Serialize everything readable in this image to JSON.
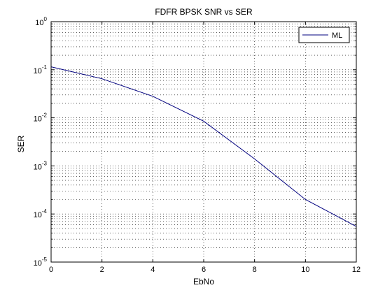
{
  "chart_data": {
    "type": "line",
    "title": "FDFR BPSK SNR vs SER",
    "xlabel": "EbNo",
    "ylabel": "SER",
    "xlim": [
      0,
      12
    ],
    "ylim": [
      1e-05,
      1
    ],
    "yscale": "log",
    "grid": true,
    "legend": "top-right",
    "x_ticks": [
      0,
      2,
      4,
      6,
      8,
      10,
      12
    ],
    "x_tick_labels": [
      "0",
      "2",
      "4",
      "6",
      "8",
      "10",
      "12"
    ],
    "y_ticks": [
      {
        "value": 1,
        "base": "10",
        "exp": "0"
      },
      {
        "value": 0.1,
        "base": "10",
        "exp": "-1"
      },
      {
        "value": 0.01,
        "base": "10",
        "exp": "-2"
      },
      {
        "value": 0.001,
        "base": "10",
        "exp": "-3"
      },
      {
        "value": 0.0001,
        "base": "10",
        "exp": "-4"
      },
      {
        "value": 1e-05,
        "base": "10",
        "exp": "-5"
      }
    ],
    "series": [
      {
        "name": "ML",
        "color": "#00007f",
        "x": [
          0,
          2,
          4,
          6,
          8,
          10,
          12
        ],
        "y": [
          0.115,
          0.065,
          0.028,
          0.0085,
          0.0014,
          0.0002,
          5.5e-05
        ]
      }
    ]
  }
}
